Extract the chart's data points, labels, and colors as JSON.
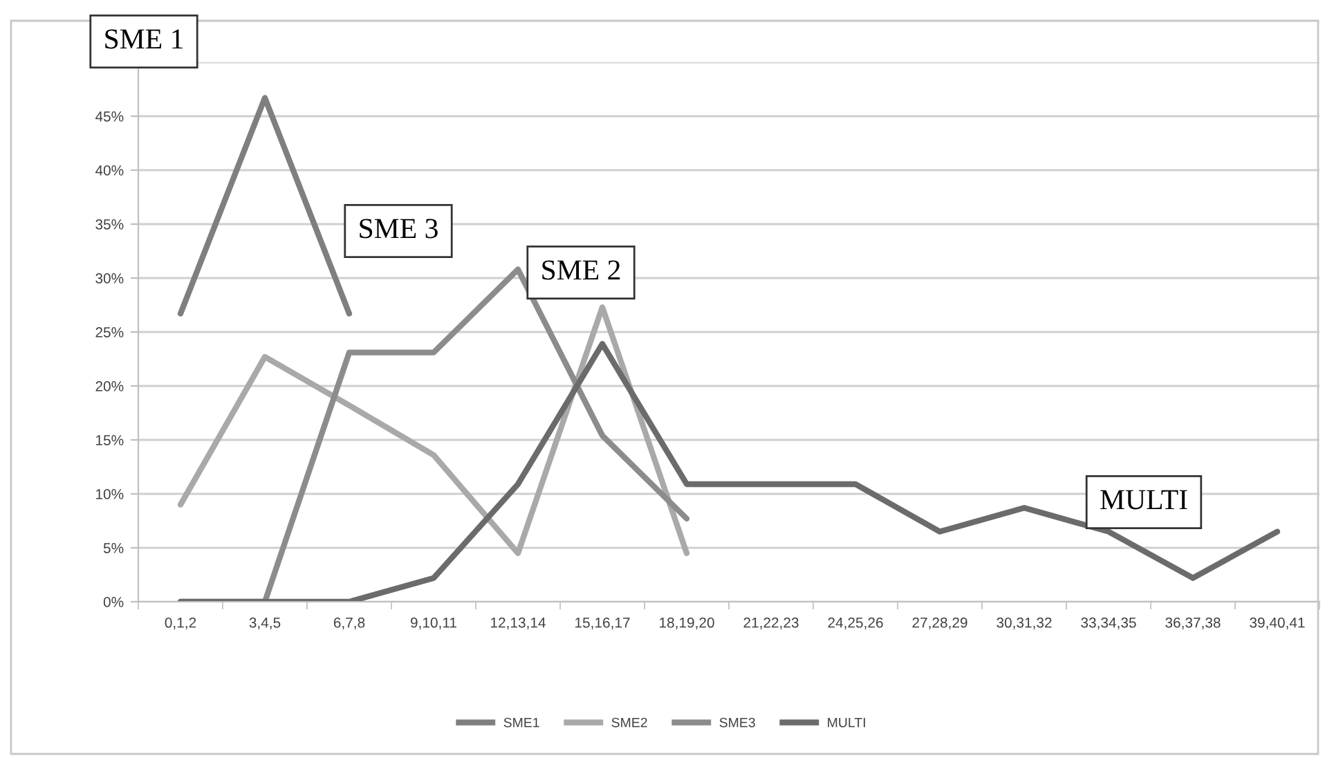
{
  "chart_data": {
    "type": "line",
    "categories": [
      "0,1,2",
      "3,4,5",
      "6,7,8",
      "9,10,11",
      "12,13,14",
      "15,16,17",
      "18,19,20",
      "21,22,23",
      "24,25,26",
      "27,28,29",
      "30,31,32",
      "33,34,35",
      "36,37,38",
      "39,40,41"
    ],
    "series": [
      {
        "name": "SME1",
        "color": "#7f7f7f",
        "values": [
          26.7,
          46.7,
          26.7,
          null,
          null,
          null,
          null,
          null,
          null,
          null,
          null,
          null,
          null,
          null
        ]
      },
      {
        "name": "SME2",
        "color": "#a9a9a9",
        "values": [
          9.0,
          22.7,
          18.2,
          13.6,
          4.5,
          27.3,
          4.5,
          null,
          null,
          null,
          null,
          null,
          null,
          null
        ]
      },
      {
        "name": "SME3",
        "color": "#8c8c8c",
        "values": [
          0,
          0,
          23.1,
          23.1,
          30.8,
          15.4,
          7.7,
          null,
          null,
          null,
          null,
          null,
          null,
          null
        ]
      },
      {
        "name": "MULTI",
        "color": "#6b6b6b",
        "values": [
          0,
          0,
          0,
          2.2,
          10.9,
          23.9,
          10.9,
          10.9,
          10.9,
          6.5,
          8.7,
          6.5,
          2.2,
          6.5
        ]
      }
    ],
    "ylim": [
      0,
      50
    ],
    "yticks": [
      {
        "value": 0,
        "label": "0%"
      },
      {
        "value": 5,
        "label": "5%"
      },
      {
        "value": 10,
        "label": "10%"
      },
      {
        "value": 15,
        "label": "15%"
      },
      {
        "value": 20,
        "label": "20%"
      },
      {
        "value": 25,
        "label": "25%"
      },
      {
        "value": 30,
        "label": "30%"
      },
      {
        "value": 35,
        "label": "35%"
      },
      {
        "value": 40,
        "label": "40%"
      },
      {
        "value": 45,
        "label": "45%"
      },
      {
        "value": 50,
        "label": null
      }
    ],
    "grid": "y",
    "legend": "bottom",
    "marker": "none",
    "line_style": "solid",
    "annotations": [
      "SME 1",
      "SME 3",
      "SME 2",
      "MULTI"
    ]
  }
}
